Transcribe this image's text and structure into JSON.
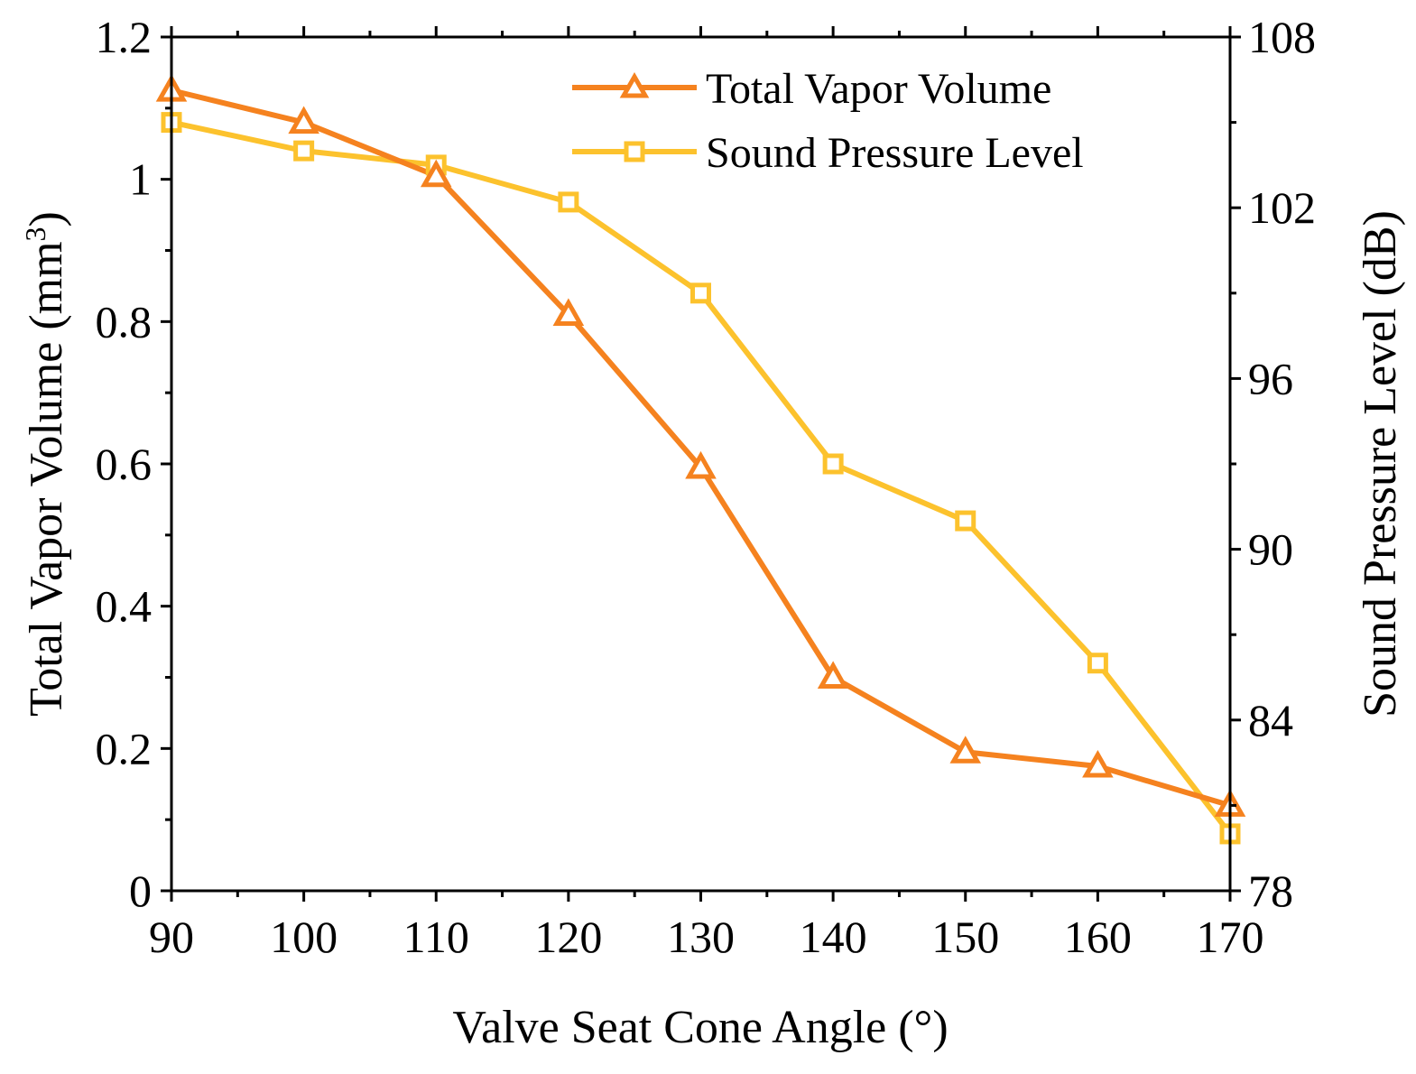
{
  "chart_data": {
    "type": "line",
    "xlabel": "Valve Seat Cone Angle (°)",
    "ylabel_left_main": "Total Vapor Volume (mm",
    "ylabel_left_sup": "3",
    "ylabel_left_close": ")",
    "ylabel_right": "Sound Pressure Level (dB)",
    "x": [
      90,
      100,
      110,
      120,
      130,
      140,
      150,
      160,
      170
    ],
    "xlim": [
      90,
      170
    ],
    "x_ticks": [
      "90",
      "100",
      "110",
      "120",
      "130",
      "140",
      "150",
      "160",
      "170"
    ],
    "ylim_left": [
      0,
      1.2
    ],
    "y_ticks_left": [
      "0",
      "0.2",
      "0.4",
      "0.6",
      "0.8",
      "1",
      "1.2"
    ],
    "ylim_right": [
      78,
      108
    ],
    "y_ticks_right": [
      "78",
      "84",
      "90",
      "96",
      "102",
      "108"
    ],
    "grid": false,
    "legend_position": "top-right",
    "series": [
      {
        "name": "Total Vapor Volume",
        "axis": "left",
        "marker": "triangle",
        "color": "#F5821F",
        "values": [
          1.125,
          1.08,
          1.005,
          0.81,
          0.595,
          0.3,
          0.195,
          0.175,
          0.12
        ]
      },
      {
        "name": "Sound Pressure Level",
        "axis": "right",
        "marker": "square",
        "color": "#FCC22D",
        "values": [
          105.0,
          104.0,
          103.5,
          102.2,
          99.0,
          93.0,
          91.0,
          86.0,
          80.0
        ]
      }
    ]
  }
}
